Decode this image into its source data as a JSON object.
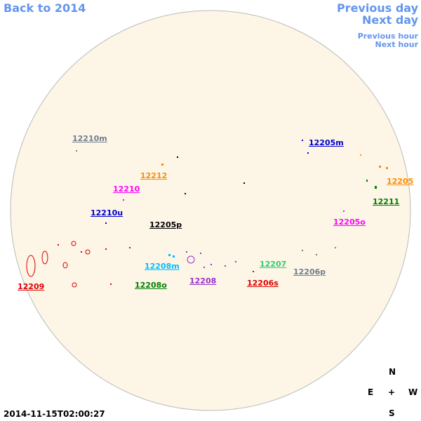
{
  "navigation": {
    "back": "Back to 2014",
    "previous_day": "Previous day",
    "next_day": "Next day",
    "previous_hour": "Previous hour",
    "next_hour": "Next hour"
  },
  "regions": [
    {
      "label": "12210m"
    },
    {
      "label": "12212"
    },
    {
      "label": "12210"
    },
    {
      "label": "12210u"
    },
    {
      "label": "12205p"
    },
    {
      "label": "12208m"
    },
    {
      "label": "12208o"
    },
    {
      "label": "12208"
    },
    {
      "label": "12209"
    },
    {
      "label": "12206s"
    },
    {
      "label": "12207"
    },
    {
      "label": "12206p"
    },
    {
      "label": "12205m"
    },
    {
      "label": "12205"
    },
    {
      "label": "12211"
    },
    {
      "label": "12205o"
    }
  ],
  "compass": {
    "north": "N",
    "east": "E",
    "center": "+",
    "west": "W",
    "south": "S"
  },
  "timestamp": "2014-11-15T02:00:27"
}
